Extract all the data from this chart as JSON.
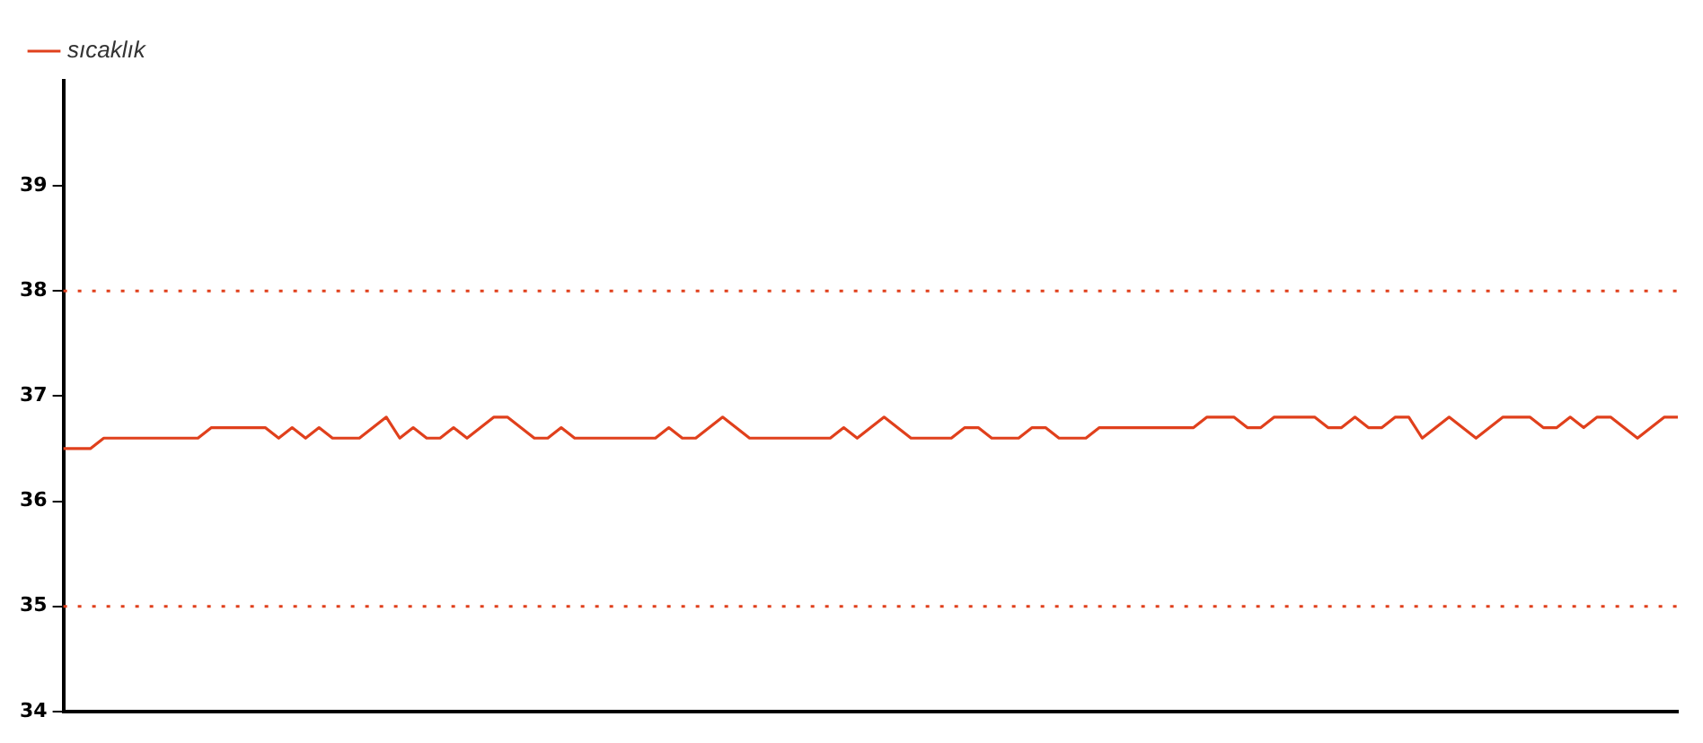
{
  "chart_data": {
    "type": "line",
    "categories": [
      null,
      null,
      null,
      null,
      null,
      null,
      null,
      null,
      null,
      null,
      null,
      null,
      null,
      null,
      null,
      null,
      null,
      null,
      null,
      null,
      null,
      null,
      null,
      null,
      null,
      null,
      null,
      null,
      null,
      null,
      null,
      null,
      null,
      null,
      null,
      null,
      null,
      null,
      null,
      null,
      null,
      null,
      null,
      null,
      null,
      null,
      null,
      null,
      null,
      null,
      null,
      null,
      null,
      null,
      null,
      null,
      null,
      null,
      null,
      null,
      null,
      null,
      null,
      null,
      null,
      null,
      null,
      null,
      null,
      null,
      null,
      null,
      null,
      null,
      null,
      null,
      null,
      null,
      null,
      null,
      null,
      null,
      null,
      null,
      null,
      null,
      null,
      null,
      null,
      null,
      null,
      null,
      null,
      null,
      null,
      null,
      null,
      null,
      null,
      null,
      null,
      null,
      null,
      null,
      null,
      null,
      null,
      null,
      null,
      null,
      null,
      null,
      null,
      null,
      null,
      null,
      null,
      null,
      null,
      null,
      null
    ],
    "series": [
      {
        "name": "sıcaklık",
        "color": "#e0401c",
        "values": [
          36.5,
          36.5,
          36.5,
          36.6,
          36.6,
          36.6,
          36.6,
          36.6,
          36.6,
          36.6,
          36.6,
          36.7,
          36.7,
          36.7,
          36.7,
          36.7,
          36.6,
          36.7,
          36.6,
          36.7,
          36.6,
          36.6,
          36.6,
          36.7,
          36.8,
          36.6,
          36.7,
          36.6,
          36.6,
          36.7,
          36.6,
          36.7,
          36.8,
          36.8,
          36.7,
          36.6,
          36.6,
          36.7,
          36.6,
          36.6,
          36.6,
          36.6,
          36.6,
          36.6,
          36.6,
          36.7,
          36.6,
          36.6,
          36.7,
          36.8,
          36.7,
          36.6,
          36.6,
          36.6,
          36.6,
          36.6,
          36.6,
          36.6,
          36.7,
          36.6,
          36.7,
          36.8,
          36.7,
          36.6,
          36.6,
          36.6,
          36.6,
          36.7,
          36.7,
          36.6,
          36.6,
          36.6,
          36.7,
          36.7,
          36.6,
          36.6,
          36.6,
          36.7,
          36.7,
          36.7,
          36.7,
          36.7,
          36.7,
          36.7,
          36.7,
          36.8,
          36.8,
          36.8,
          36.7,
          36.7,
          36.8,
          36.8,
          36.8,
          36.8,
          36.7,
          36.7,
          36.8,
          36.7,
          36.7,
          36.8,
          36.8,
          36.6,
          36.7,
          36.8,
          36.7,
          36.6,
          36.7,
          36.8,
          36.8,
          36.8,
          36.7,
          36.7,
          36.8,
          36.7,
          36.8,
          36.8,
          36.7,
          36.6,
          36.7,
          36.8,
          36.8
        ]
      }
    ],
    "ylim": [
      34,
      40
    ],
    "yticks": [
      34,
      35,
      36,
      37,
      38,
      39
    ],
    "ref_lines": [
      {
        "axis": "y",
        "value": 38,
        "color": "#e0401c",
        "line_style": "dotted"
      },
      {
        "axis": "y",
        "value": 35,
        "color": "#e0401c",
        "line_style": "dotted"
      }
    ],
    "legend": "top left",
    "grid": false,
    "tick_labels": "y",
    "marker": "none",
    "line_style": "solid"
  }
}
